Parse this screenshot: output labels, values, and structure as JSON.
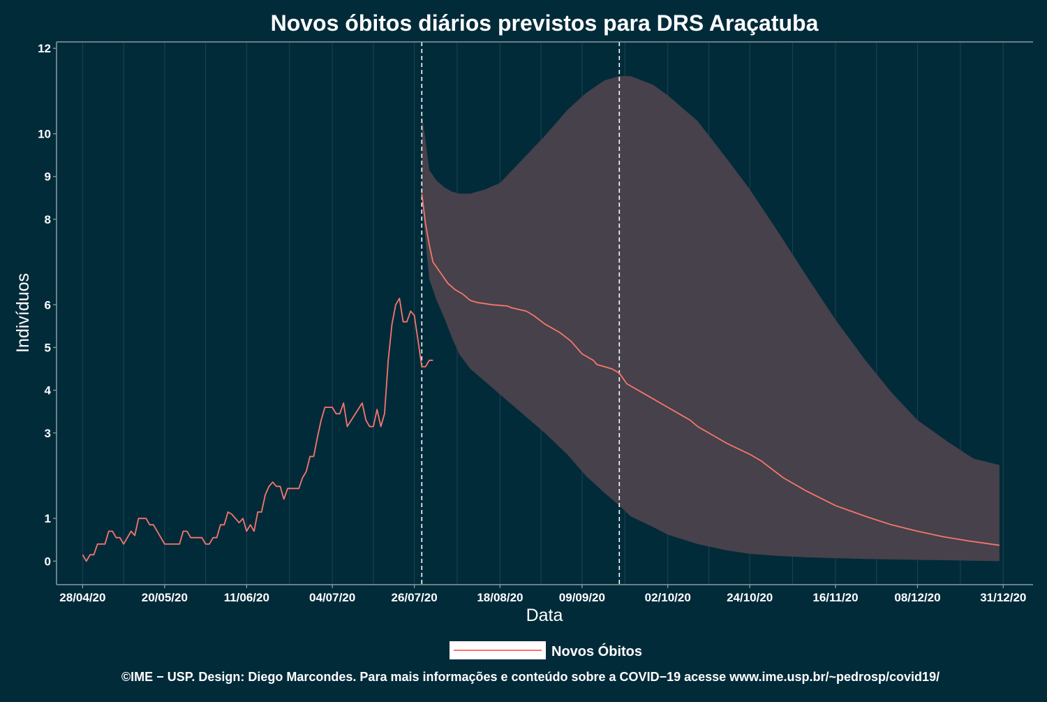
{
  "chart_data": {
    "type": "line",
    "title": "Novos óbitos diários previstos para DRS Araçatuba",
    "xlabel": "Data",
    "ylabel": "Indivíduos",
    "x_tick_labels": [
      "28/04/20",
      "20/05/20",
      "11/06/20",
      "04/07/20",
      "26/07/20",
      "18/08/20",
      "09/09/20",
      "02/10/20",
      "24/10/20",
      "16/11/20",
      "08/12/20",
      "31/12/20"
    ],
    "x_tick_dates": [
      "2020-04-28",
      "2020-05-20",
      "2020-06-11",
      "2020-07-04",
      "2020-07-26",
      "2020-08-18",
      "2020-09-09",
      "2020-10-02",
      "2020-10-24",
      "2020-11-16",
      "2020-12-08",
      "2020-12-31"
    ],
    "y_ticks": [
      0,
      1,
      3,
      4,
      5,
      6,
      8,
      9,
      10,
      12
    ],
    "y_tick_labels": [
      "0",
      "1",
      "3",
      "4",
      "5",
      "6",
      "8",
      "9",
      "10",
      "12"
    ],
    "xlim": [
      "2020-04-21",
      "2021-01-08"
    ],
    "ylim": [
      -0.55,
      12.15
    ],
    "vertical_lines": [
      "2020-07-28",
      "2020-09-19"
    ],
    "grid": true,
    "legend_position": "bottom",
    "series": [
      {
        "name": "Novos Óbitos",
        "color": "#f8766d",
        "points": [
          [
            "2020-04-28",
            0.15
          ],
          [
            "2020-04-29",
            0.0
          ],
          [
            "2020-04-30",
            0.15
          ],
          [
            "2020-05-01",
            0.15
          ],
          [
            "2020-05-02",
            0.4
          ],
          [
            "2020-05-04",
            0.4
          ],
          [
            "2020-05-05",
            0.7
          ],
          [
            "2020-05-06",
            0.7
          ],
          [
            "2020-05-07",
            0.55
          ],
          [
            "2020-05-08",
            0.55
          ],
          [
            "2020-05-09",
            0.4
          ],
          [
            "2020-05-11",
            0.7
          ],
          [
            "2020-05-12",
            0.6
          ],
          [
            "2020-05-13",
            1.0
          ],
          [
            "2020-05-15",
            1.0
          ],
          [
            "2020-05-16",
            0.85
          ],
          [
            "2020-05-17",
            0.85
          ],
          [
            "2020-05-20",
            0.4
          ],
          [
            "2020-05-24",
            0.4
          ],
          [
            "2020-05-25",
            0.7
          ],
          [
            "2020-05-26",
            0.7
          ],
          [
            "2020-05-27",
            0.55
          ],
          [
            "2020-05-30",
            0.55
          ],
          [
            "2020-05-31",
            0.4
          ],
          [
            "2020-06-01",
            0.4
          ],
          [
            "2020-06-02",
            0.55
          ],
          [
            "2020-06-03",
            0.55
          ],
          [
            "2020-06-04",
            0.85
          ],
          [
            "2020-06-05",
            0.85
          ],
          [
            "2020-06-06",
            1.15
          ],
          [
            "2020-06-07",
            1.1
          ],
          [
            "2020-06-09",
            0.9
          ],
          [
            "2020-06-10",
            1.0
          ],
          [
            "2020-06-11",
            0.7
          ],
          [
            "2020-06-12",
            0.85
          ],
          [
            "2020-06-13",
            0.7
          ],
          [
            "2020-06-14",
            1.15
          ],
          [
            "2020-06-15",
            1.15
          ],
          [
            "2020-06-16",
            1.55
          ],
          [
            "2020-06-17",
            1.75
          ],
          [
            "2020-06-18",
            1.85
          ],
          [
            "2020-06-19",
            1.75
          ],
          [
            "2020-06-20",
            1.75
          ],
          [
            "2020-06-21",
            1.45
          ],
          [
            "2020-06-22",
            1.7
          ],
          [
            "2020-06-25",
            1.7
          ],
          [
            "2020-06-26",
            1.95
          ],
          [
            "2020-06-27",
            2.1
          ],
          [
            "2020-06-28",
            2.45
          ],
          [
            "2020-06-29",
            2.45
          ],
          [
            "2020-06-30",
            2.9
          ],
          [
            "2020-07-01",
            3.3
          ],
          [
            "2020-07-02",
            3.6
          ],
          [
            "2020-07-04",
            3.6
          ],
          [
            "2020-07-05",
            3.45
          ],
          [
            "2020-07-06",
            3.45
          ],
          [
            "2020-07-07",
            3.7
          ],
          [
            "2020-07-08",
            3.15
          ],
          [
            "2020-07-12",
            3.7
          ],
          [
            "2020-07-13",
            3.3
          ],
          [
            "2020-07-14",
            3.15
          ],
          [
            "2020-07-15",
            3.15
          ],
          [
            "2020-07-16",
            3.55
          ],
          [
            "2020-07-17",
            3.15
          ],
          [
            "2020-07-18",
            3.45
          ],
          [
            "2020-07-19",
            4.7
          ],
          [
            "2020-07-20",
            5.55
          ],
          [
            "2020-07-21",
            6.0
          ],
          [
            "2020-07-22",
            6.15
          ],
          [
            "2020-07-23",
            5.6
          ],
          [
            "2020-07-24",
            5.6
          ],
          [
            "2020-07-25",
            5.85
          ],
          [
            "2020-07-26",
            5.75
          ],
          [
            "2020-07-27",
            5.15
          ],
          [
            "2020-07-28",
            4.55
          ],
          [
            "2020-07-29",
            4.55
          ],
          [
            "2020-07-30",
            4.7
          ],
          [
            "2020-07-31",
            4.7
          ]
        ]
      },
      {
        "name": "",
        "color": "#f8766d",
        "points": [
          [
            "2020-07-28",
            8.6
          ],
          [
            "2020-07-29",
            7.9
          ],
          [
            "2020-07-30",
            7.4
          ],
          [
            "2020-07-31",
            7.0
          ],
          [
            "2020-08-02",
            6.75
          ],
          [
            "2020-08-04",
            6.5
          ],
          [
            "2020-08-06",
            6.35
          ],
          [
            "2020-08-08",
            6.25
          ],
          [
            "2020-08-10",
            6.1
          ],
          [
            "2020-08-12",
            6.05
          ],
          [
            "2020-08-16",
            6.0
          ],
          [
            "2020-08-20",
            5.97
          ],
          [
            "2020-08-21",
            5.93
          ],
          [
            "2020-08-25",
            5.85
          ],
          [
            "2020-08-27",
            5.75
          ],
          [
            "2020-08-30",
            5.55
          ],
          [
            "2020-09-03",
            5.35
          ],
          [
            "2020-09-06",
            5.15
          ],
          [
            "2020-09-09",
            4.85
          ],
          [
            "2020-09-12",
            4.7
          ],
          [
            "2020-09-13",
            4.6
          ],
          [
            "2020-09-17",
            4.5
          ],
          [
            "2020-09-19",
            4.4
          ],
          [
            "2020-09-21",
            4.15
          ],
          [
            "2020-09-26",
            3.9
          ],
          [
            "2020-10-02",
            3.6
          ],
          [
            "2020-10-05",
            3.45
          ],
          [
            "2020-10-08",
            3.3
          ],
          [
            "2020-10-10",
            3.15
          ],
          [
            "2020-10-14",
            2.95
          ],
          [
            "2020-10-18",
            2.75
          ],
          [
            "2020-10-24",
            2.5
          ],
          [
            "2020-10-27",
            2.35
          ],
          [
            "2020-10-30",
            2.15
          ],
          [
            "2020-11-02",
            1.95
          ],
          [
            "2020-11-08",
            1.65
          ],
          [
            "2020-11-16",
            1.3
          ],
          [
            "2020-11-24",
            1.05
          ],
          [
            "2020-12-01",
            0.85
          ],
          [
            "2020-12-08",
            0.7
          ],
          [
            "2020-12-15",
            0.57
          ],
          [
            "2020-12-22",
            0.47
          ],
          [
            "2020-12-30",
            0.37
          ]
        ]
      }
    ],
    "band": {
      "color": "#46414a",
      "points": [
        [
          "2020-07-28",
          10.45,
          8.5
        ],
        [
          "2020-07-29",
          9.85,
          7.5
        ],
        [
          "2020-07-30",
          9.15,
          6.6
        ],
        [
          "2020-08-01",
          8.9,
          6.1
        ],
        [
          "2020-08-03",
          8.75,
          5.7
        ],
        [
          "2020-08-05",
          8.65,
          5.25
        ],
        [
          "2020-08-07",
          8.6,
          4.85
        ],
        [
          "2020-08-10",
          8.6,
          4.5
        ],
        [
          "2020-08-14",
          8.7,
          4.2
        ],
        [
          "2020-08-18",
          8.85,
          3.9
        ],
        [
          "2020-08-24",
          9.4,
          3.45
        ],
        [
          "2020-08-30",
          9.95,
          3.0
        ],
        [
          "2020-09-05",
          10.55,
          2.5
        ],
        [
          "2020-09-10",
          10.95,
          2.0
        ],
        [
          "2020-09-15",
          11.25,
          1.6
        ],
        [
          "2020-09-19",
          11.35,
          1.3
        ],
        [
          "2020-09-22",
          11.35,
          1.05
        ],
        [
          "2020-09-28",
          11.15,
          0.8
        ],
        [
          "2020-10-02",
          10.9,
          0.62
        ],
        [
          "2020-10-10",
          10.3,
          0.4
        ],
        [
          "2020-10-18",
          9.4,
          0.25
        ],
        [
          "2020-10-24",
          8.7,
          0.17
        ],
        [
          "2020-11-01",
          7.65,
          0.12
        ],
        [
          "2020-11-08",
          6.7,
          0.09
        ],
        [
          "2020-11-16",
          5.65,
          0.07
        ],
        [
          "2020-11-24",
          4.7,
          0.05
        ],
        [
          "2020-12-01",
          3.95,
          0.04
        ],
        [
          "2020-12-08",
          3.3,
          0.03
        ],
        [
          "2020-12-16",
          2.8,
          0.02
        ],
        [
          "2020-12-23",
          2.4,
          0.01
        ],
        [
          "2020-12-30",
          2.25,
          0.0
        ]
      ]
    }
  },
  "legend": {
    "items": [
      {
        "label": "Novos Óbitos",
        "color": "#f8766d"
      }
    ]
  },
  "caption": "©IME − USP. Design: Diego Marcondes. Para mais informações e conteúdo sobre a COVID−19 acesse www.ime.usp.br/~pedrosp/covid19/",
  "colors": {
    "background": "#022b3a",
    "grid": "#1f4250",
    "axis": "#8a9da3",
    "text": "#ffffff",
    "vline": "#ffffff",
    "legend_key": "#ffffff"
  }
}
